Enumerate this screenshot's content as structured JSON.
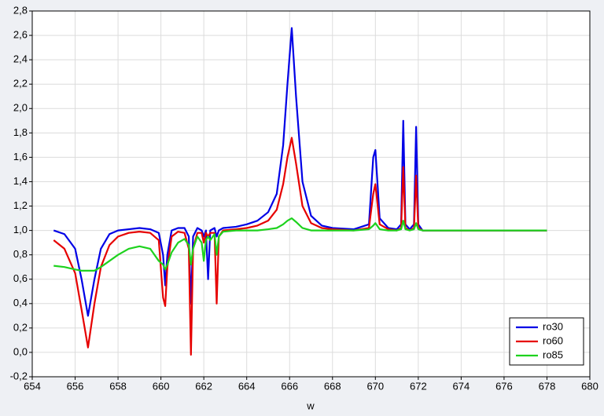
{
  "chart_data": {
    "type": "line",
    "x_label": "w",
    "x": [
      655,
      655.5,
      656,
      656.3,
      656.6,
      656.9,
      657.2,
      657.6,
      658,
      658.5,
      659,
      659.5,
      659.9,
      660.1,
      660.2,
      660.3,
      660.5,
      660.8,
      661.1,
      661.3,
      661.4,
      661.5,
      661.7,
      661.9,
      662.0,
      662.1,
      662.2,
      662.3,
      662.5,
      662.6,
      662.7,
      662.9,
      663.5,
      664,
      664.5,
      665,
      665.4,
      665.7,
      665.9,
      666.1,
      666.3,
      666.6,
      667,
      667.5,
      668,
      669,
      669.7,
      669.9,
      670.0,
      670.2,
      670.6,
      671.0,
      671.2,
      671.3,
      671.4,
      671.6,
      671.8,
      671.9,
      672.0,
      672.2,
      673,
      675,
      678
    ],
    "series": [
      {
        "name": "ro30",
        "color": "#0000e6",
        "values": [
          1.0,
          0.97,
          0.85,
          0.6,
          0.3,
          0.6,
          0.85,
          0.97,
          1.0,
          1.01,
          1.02,
          1.01,
          0.98,
          0.8,
          0.55,
          0.8,
          1.0,
          1.02,
          1.02,
          0.95,
          0.4,
          0.95,
          1.02,
          1.0,
          0.95,
          1.0,
          0.6,
          1.0,
          1.02,
          0.95,
          1.0,
          1.02,
          1.03,
          1.05,
          1.08,
          1.15,
          1.3,
          1.7,
          2.2,
          2.66,
          2.1,
          1.4,
          1.12,
          1.04,
          1.02,
          1.01,
          1.05,
          1.6,
          1.66,
          1.1,
          1.02,
          1.01,
          1.05,
          1.9,
          1.05,
          1.01,
          1.05,
          1.85,
          1.05,
          1.0,
          1.0,
          1.0,
          1.0
        ]
      },
      {
        "name": "ro60",
        "color": "#e60000",
        "values": [
          0.92,
          0.85,
          0.65,
          0.35,
          0.04,
          0.4,
          0.7,
          0.88,
          0.95,
          0.98,
          0.99,
          0.98,
          0.92,
          0.45,
          0.38,
          0.7,
          0.95,
          0.99,
          0.98,
          0.85,
          -0.02,
          0.85,
          0.98,
          0.98,
          0.9,
          0.98,
          0.95,
          0.98,
          0.98,
          0.4,
          0.95,
          1.0,
          1.01,
          1.02,
          1.04,
          1.08,
          1.17,
          1.38,
          1.6,
          1.76,
          1.55,
          1.2,
          1.06,
          1.02,
          1.01,
          1.0,
          1.02,
          1.3,
          1.38,
          1.05,
          1.01,
          1.0,
          1.02,
          1.52,
          1.02,
          1.0,
          1.02,
          1.45,
          1.02,
          1.0,
          1.0,
          1.0,
          1.0
        ]
      },
      {
        "name": "ro85",
        "color": "#1ed21e",
        "values": [
          0.71,
          0.7,
          0.68,
          0.67,
          0.67,
          0.67,
          0.7,
          0.75,
          0.8,
          0.85,
          0.87,
          0.85,
          0.75,
          0.72,
          0.68,
          0.72,
          0.82,
          0.9,
          0.93,
          0.88,
          0.72,
          0.85,
          0.95,
          0.9,
          0.75,
          0.92,
          0.95,
          0.92,
          0.97,
          0.8,
          0.95,
          0.99,
          1.0,
          1.0,
          1.0,
          1.01,
          1.02,
          1.05,
          1.08,
          1.1,
          1.07,
          1.02,
          1.0,
          1.0,
          1.0,
          1.0,
          1.01,
          1.04,
          1.06,
          1.01,
          1.0,
          1.0,
          1.01,
          1.08,
          1.01,
          1.0,
          1.01,
          1.06,
          1.01,
          1.0,
          1.0,
          1.0,
          1.0
        ]
      }
    ],
    "xlim": [
      654,
      680
    ],
    "xticks": [
      654,
      656,
      658,
      660,
      662,
      664,
      666,
      668,
      670,
      672,
      674,
      676,
      678,
      680
    ],
    "ylim": [
      -0.2,
      2.8
    ],
    "yticks": [
      {
        "value": -0.2,
        "label": "-0,2"
      },
      {
        "value": 0,
        "label": "0,0"
      },
      {
        "value": 0.2,
        "label": "0,2"
      },
      {
        "value": 0.4,
        "label": "0,4"
      },
      {
        "value": 0.6,
        "label": "0,6"
      },
      {
        "value": 0.8,
        "label": "0,8"
      },
      {
        "value": 1.0,
        "label": "1,0"
      },
      {
        "value": 1.2,
        "label": "1,2"
      },
      {
        "value": 1.4,
        "label": "1,4"
      },
      {
        "value": 1.6,
        "label": "1,6"
      },
      {
        "value": 1.8,
        "label": "1,8"
      },
      {
        "value": 2.0,
        "label": "2,0"
      },
      {
        "value": 2.2,
        "label": "2,2"
      },
      {
        "value": 2.4,
        "label": "2,4"
      },
      {
        "value": 2.6,
        "label": "2,6"
      },
      {
        "value": 2.8,
        "label": "2,8"
      }
    ],
    "grid": true,
    "legend": "lower right"
  }
}
